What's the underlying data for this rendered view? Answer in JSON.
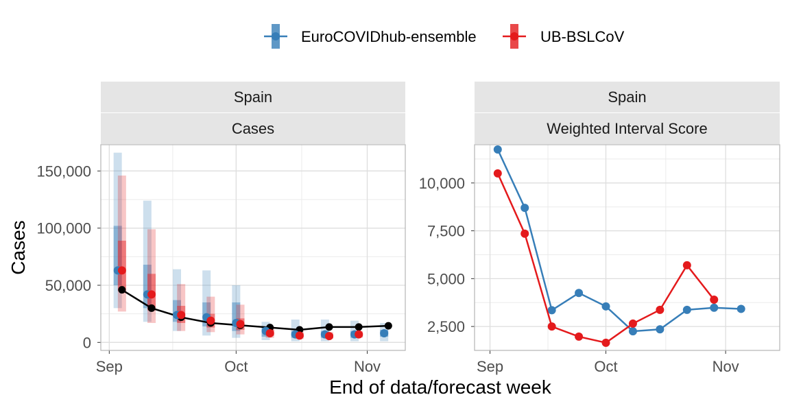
{
  "colors": {
    "ensemble": "#377EB8",
    "ub": "#E41A1C",
    "observed": "#000000",
    "strip_bg": "#E5E5E5",
    "grid": "#EBEBEB",
    "tick_text": "#4D4D4D"
  },
  "legend": {
    "items": [
      {
        "label": "EuroCOVIDhub-ensemble",
        "series_key": "ensemble"
      },
      {
        "label": "UB-BSLCoV",
        "series_key": "ub"
      }
    ],
    "placement": "top"
  },
  "x_axis_title": "End of data/forecast week",
  "chart_data": [
    {
      "type": "line",
      "panel_strips": [
        "Spain",
        "Cases"
      ],
      "ylabel": "Cases",
      "xlabel": "End of data/forecast week",
      "x_ticks": [
        {
          "date": "2021-09-01",
          "label": "Sep"
        },
        {
          "date": "2021-10-01",
          "label": "Oct"
        },
        {
          "date": "2021-11-01",
          "label": "Nov"
        }
      ],
      "x_range": [
        "2021-08-30",
        "2021-11-10"
      ],
      "y_ticks": [
        {
          "value": 0,
          "label": "0"
        },
        {
          "value": 50000,
          "label": "50,000"
        },
        {
          "value": 100000,
          "label": "100,000"
        },
        {
          "value": 150000,
          "label": "150,000"
        }
      ],
      "ylim": [
        -7000,
        173000
      ],
      "grid": true,
      "observed": {
        "x": [
          "2021-09-04",
          "2021-09-11",
          "2021-09-18",
          "2021-09-25",
          "2021-10-02",
          "2021-10-09",
          "2021-10-16",
          "2021-10-23",
          "2021-10-30",
          "2021-11-06"
        ],
        "y": [
          46000,
          30000,
          22000,
          17000,
          15000,
          13000,
          11000,
          13500,
          13500,
          14500
        ]
      },
      "forecasts": [
        {
          "series_key": "ensemble",
          "x": [
            "2021-09-03",
            "2021-09-10",
            "2021-09-17",
            "2021-09-24",
            "2021-10-01",
            "2021-10-08",
            "2021-10-15",
            "2021-10-22",
            "2021-10-29",
            "2021-11-05"
          ],
          "median": [
            63000,
            42000,
            24000,
            22000,
            17000,
            10000,
            7000,
            7000,
            7000,
            8000
          ],
          "lower_90": [
            30000,
            18000,
            10000,
            6000,
            4000,
            2000,
            1000,
            1000,
            1000,
            1000
          ],
          "upper_90": [
            166000,
            124000,
            64000,
            63000,
            50000,
            18000,
            20000,
            20000,
            19000,
            17000
          ],
          "lower_50": [
            50000,
            30000,
            18000,
            14000,
            10000,
            5000,
            4000,
            4000,
            4000,
            5000
          ],
          "upper_50": [
            102000,
            68000,
            37000,
            35000,
            35000,
            14000,
            10000,
            10000,
            10000,
            11000
          ]
        },
        {
          "series_key": "ub",
          "x": [
            "2021-09-04",
            "2021-09-11",
            "2021-09-18",
            "2021-09-25",
            "2021-10-02",
            "2021-10-09",
            "2021-10-16",
            "2021-10-23",
            "2021-10-30"
          ],
          "median": [
            63000,
            42000,
            24000,
            19000,
            16000,
            8000,
            6000,
            5500,
            7000
          ],
          "lower_90": [
            27000,
            17000,
            10000,
            9000,
            7000,
            4000,
            3000,
            3000,
            4000
          ],
          "upper_90": [
            146000,
            99000,
            51000,
            40000,
            33000,
            14000,
            10000,
            9000,
            10000
          ],
          "lower_50": [
            45000,
            28000,
            17000,
            13000,
            11000,
            6000,
            4500,
            4000,
            5000
          ],
          "upper_50": [
            89000,
            60000,
            32000,
            25000,
            21000,
            11000,
            8000,
            7000,
            8500
          ]
        }
      ]
    },
    {
      "type": "line",
      "panel_strips": [
        "Spain",
        "Weighted Interval Score"
      ],
      "ylabel": "",
      "x_ticks": [
        {
          "date": "2021-09-01",
          "label": "Sep"
        },
        {
          "date": "2021-10-01",
          "label": "Oct"
        },
        {
          "date": "2021-11-01",
          "label": "Nov"
        }
      ],
      "x_range": [
        "2021-08-28",
        "2021-11-15"
      ],
      "y_ticks": [
        {
          "value": 2500,
          "label": "2,500"
        },
        {
          "value": 5000,
          "label": "5,000"
        },
        {
          "value": 7500,
          "label": "7,500"
        },
        {
          "value": 10000,
          "label": "10,000"
        }
      ],
      "ylim": [
        1250,
        12000
      ],
      "grid": true,
      "series": [
        {
          "series_key": "ensemble",
          "x": [
            "2021-09-03",
            "2021-09-10",
            "2021-09-17",
            "2021-09-24",
            "2021-10-01",
            "2021-10-08",
            "2021-10-15",
            "2021-10-22",
            "2021-10-29",
            "2021-11-05"
          ],
          "values": [
            11750,
            8700,
            3350,
            4250,
            3550,
            2250,
            2350,
            3370,
            3480,
            3420
          ]
        },
        {
          "series_key": "ub",
          "x": [
            "2021-09-03",
            "2021-09-10",
            "2021-09-17",
            "2021-09-24",
            "2021-10-01",
            "2021-10-08",
            "2021-10-15",
            "2021-10-22",
            "2021-10-29"
          ],
          "values": [
            10500,
            7350,
            2500,
            1970,
            1650,
            2650,
            3370,
            5700,
            3900
          ]
        }
      ]
    }
  ]
}
